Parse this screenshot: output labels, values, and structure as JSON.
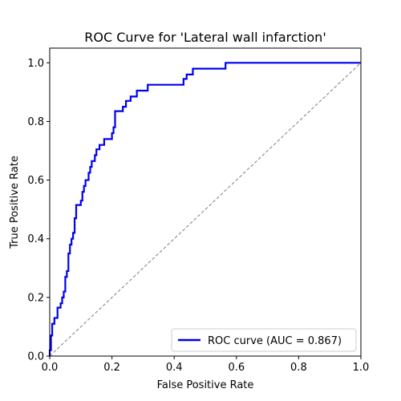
{
  "chart_data": {
    "type": "line",
    "title": "ROC Curve for 'Lateral wall infarction'",
    "xlabel": "False Positive Rate",
    "ylabel": "True Positive Rate",
    "xlim": [
      0.0,
      1.0
    ],
    "ylim": [
      0.0,
      1.05
    ],
    "x_ticks": [
      "0.0",
      "0.2",
      "0.4",
      "0.6",
      "0.8",
      "1.0"
    ],
    "y_ticks": [
      "0.0",
      "0.2",
      "0.4",
      "0.6",
      "0.8",
      "1.0"
    ],
    "grid": false,
    "legend": {
      "position": "lower-right",
      "entries": [
        "ROC curve (AUC = 0.867)"
      ]
    },
    "series": [
      {
        "name": "ROC curve (AUC = 0.867)",
        "color": "#0000ee",
        "style": "solid",
        "points": [
          [
            0.0,
            0.0
          ],
          [
            0.0,
            0.02
          ],
          [
            0.004,
            0.02
          ],
          [
            0.004,
            0.07
          ],
          [
            0.008,
            0.07
          ],
          [
            0.008,
            0.11
          ],
          [
            0.015,
            0.11
          ],
          [
            0.015,
            0.13
          ],
          [
            0.025,
            0.13
          ],
          [
            0.025,
            0.165
          ],
          [
            0.035,
            0.165
          ],
          [
            0.035,
            0.18
          ],
          [
            0.04,
            0.18
          ],
          [
            0.04,
            0.2
          ],
          [
            0.045,
            0.2
          ],
          [
            0.045,
            0.22
          ],
          [
            0.05,
            0.22
          ],
          [
            0.05,
            0.27
          ],
          [
            0.055,
            0.27
          ],
          [
            0.055,
            0.29
          ],
          [
            0.06,
            0.29
          ],
          [
            0.06,
            0.35
          ],
          [
            0.065,
            0.35
          ],
          [
            0.065,
            0.38
          ],
          [
            0.07,
            0.38
          ],
          [
            0.07,
            0.4
          ],
          [
            0.075,
            0.4
          ],
          [
            0.075,
            0.42
          ],
          [
            0.08,
            0.42
          ],
          [
            0.08,
            0.47
          ],
          [
            0.085,
            0.47
          ],
          [
            0.085,
            0.515
          ],
          [
            0.1,
            0.515
          ],
          [
            0.1,
            0.53
          ],
          [
            0.105,
            0.53
          ],
          [
            0.105,
            0.56
          ],
          [
            0.11,
            0.56
          ],
          [
            0.11,
            0.58
          ],
          [
            0.115,
            0.58
          ],
          [
            0.115,
            0.6
          ],
          [
            0.125,
            0.6
          ],
          [
            0.125,
            0.625
          ],
          [
            0.13,
            0.625
          ],
          [
            0.13,
            0.645
          ],
          [
            0.135,
            0.645
          ],
          [
            0.135,
            0.665
          ],
          [
            0.145,
            0.665
          ],
          [
            0.145,
            0.685
          ],
          [
            0.15,
            0.685
          ],
          [
            0.15,
            0.705
          ],
          [
            0.16,
            0.705
          ],
          [
            0.16,
            0.72
          ],
          [
            0.175,
            0.72
          ],
          [
            0.175,
            0.74
          ],
          [
            0.2,
            0.74
          ],
          [
            0.2,
            0.76
          ],
          [
            0.205,
            0.76
          ],
          [
            0.205,
            0.78
          ],
          [
            0.21,
            0.78
          ],
          [
            0.21,
            0.835
          ],
          [
            0.235,
            0.835
          ],
          [
            0.235,
            0.85
          ],
          [
            0.245,
            0.85
          ],
          [
            0.245,
            0.87
          ],
          [
            0.26,
            0.87
          ],
          [
            0.26,
            0.885
          ],
          [
            0.28,
            0.885
          ],
          [
            0.28,
            0.905
          ],
          [
            0.315,
            0.905
          ],
          [
            0.315,
            0.925
          ],
          [
            0.43,
            0.925
          ],
          [
            0.43,
            0.945
          ],
          [
            0.44,
            0.945
          ],
          [
            0.44,
            0.96
          ],
          [
            0.46,
            0.96
          ],
          [
            0.46,
            0.98
          ],
          [
            0.565,
            0.98
          ],
          [
            0.565,
            1.0
          ],
          [
            1.0,
            1.0
          ]
        ]
      },
      {
        "color": "#808080",
        "style": "dashed",
        "points": [
          [
            0.0,
            0.0
          ],
          [
            1.0,
            1.0
          ]
        ]
      }
    ]
  }
}
